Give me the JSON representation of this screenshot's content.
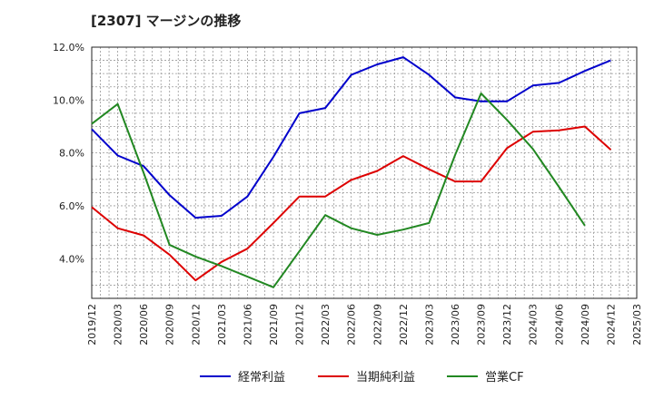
{
  "title": "[2307]  マージンの推移",
  "chart_data": {
    "type": "line",
    "x": [
      "2019/12",
      "2020/03",
      "2020/06",
      "2020/09",
      "2020/12",
      "2021/03",
      "2021/06",
      "2021/09",
      "2021/12",
      "2022/03",
      "2022/06",
      "2022/09",
      "2022/12",
      "2023/03",
      "2023/06",
      "2023/09",
      "2023/12",
      "2024/03",
      "2024/06",
      "2024/09",
      "2024/12",
      "2025/03"
    ],
    "y_ticks": [
      "4.0%",
      "6.0%",
      "8.0%",
      "10.0%",
      "12.0%"
    ],
    "ylim": [
      2.5,
      12.0
    ],
    "grid": true,
    "legend_position": "bottom",
    "series": [
      {
        "name": "経常利益",
        "color": "#0000cc",
        "values": [
          8.9,
          7.9,
          7.5,
          6.4,
          5.55,
          5.62,
          6.35,
          7.85,
          9.5,
          9.7,
          10.95,
          11.35,
          11.62,
          10.95,
          10.1,
          9.95,
          9.95,
          10.55,
          10.65,
          11.1,
          11.5,
          null
        ]
      },
      {
        "name": "当期純利益",
        "color": "#dd0000",
        "values": [
          5.95,
          5.15,
          4.88,
          4.15,
          3.18,
          3.88,
          4.38,
          5.35,
          6.35,
          6.35,
          6.98,
          7.32,
          7.88,
          7.38,
          6.92,
          6.92,
          8.18,
          8.8,
          8.85,
          9.0,
          8.12,
          null
        ]
      },
      {
        "name": "営業CF",
        "color": "#228822",
        "values": [
          9.1,
          9.85,
          7.25,
          4.52,
          4.08,
          3.72,
          3.32,
          2.92,
          4.28,
          5.65,
          5.15,
          4.9,
          5.1,
          5.35,
          7.92,
          10.25,
          9.25,
          8.15,
          6.72,
          5.25,
          null,
          null
        ]
      }
    ]
  }
}
